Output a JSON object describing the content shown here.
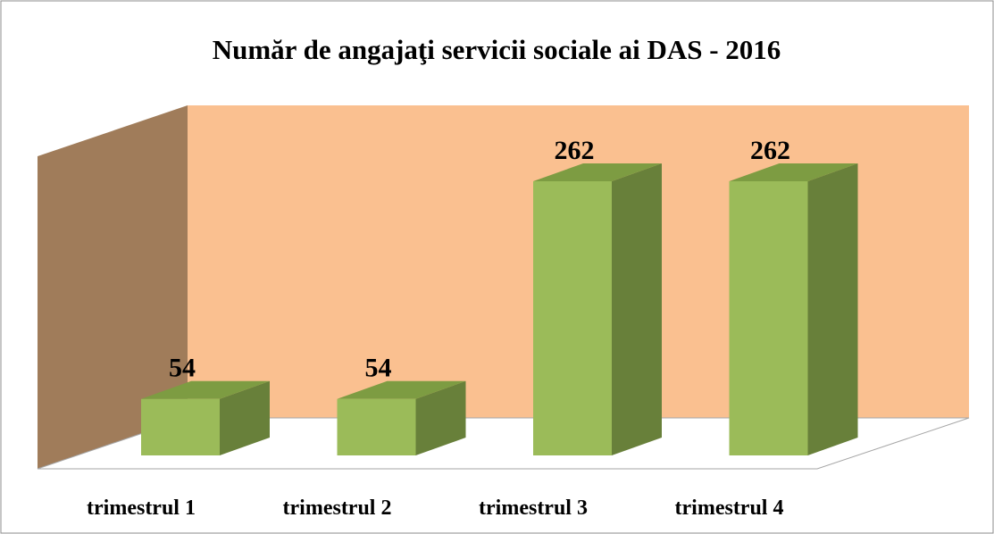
{
  "chart_data": {
    "type": "bar3d",
    "title": "Număr de angajaţi  servicii sociale ai DAS - 2016",
    "categories": [
      "trimestrul 1",
      "trimestrul 2",
      "trimestrul 3",
      "trimestrul 4"
    ],
    "values": [
      54,
      54,
      262,
      262
    ],
    "color": "#9bbb59"
  }
}
